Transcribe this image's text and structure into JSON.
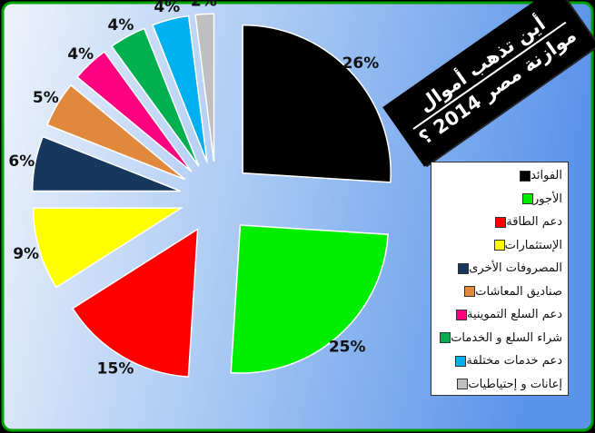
{
  "title": {
    "line1": "أين تذهب أموال",
    "line2": "موازنة مصر 2014 ؟"
  },
  "chart_data": {
    "type": "pie",
    "exploded": true,
    "start_angle_deg": 0,
    "direction": "clockwise",
    "legend_placement": "right",
    "categories": [
      "الفوائد",
      "الأجور",
      "دعم الطاقة",
      "الإستثمارات",
      "المصروفات الأخرى",
      "صناديق المعاشات",
      "دعم السلع التموينية",
      "شراء السلع و الخدمات",
      "دعم خدمات مختلفة",
      "إعانات و إحتياطيات"
    ],
    "values": [
      26,
      25,
      15,
      9,
      6,
      5,
      4,
      4,
      4,
      2
    ],
    "labels": [
      "26%",
      "25%",
      "15%",
      "9%",
      "6%",
      "5%",
      "4%",
      "4%",
      "4%",
      "2%"
    ],
    "colors": [
      "#000000",
      "#00ee00",
      "#ff0000",
      "#ffff00",
      "#17375e",
      "#e0893c",
      "#ff0080",
      "#00b050",
      "#00b0f0",
      "#bfbfbf"
    ],
    "background_gradient": [
      "#eef3fb",
      "#9ec2f2",
      "#5c94ea"
    ],
    "border_color": "#00a000"
  }
}
